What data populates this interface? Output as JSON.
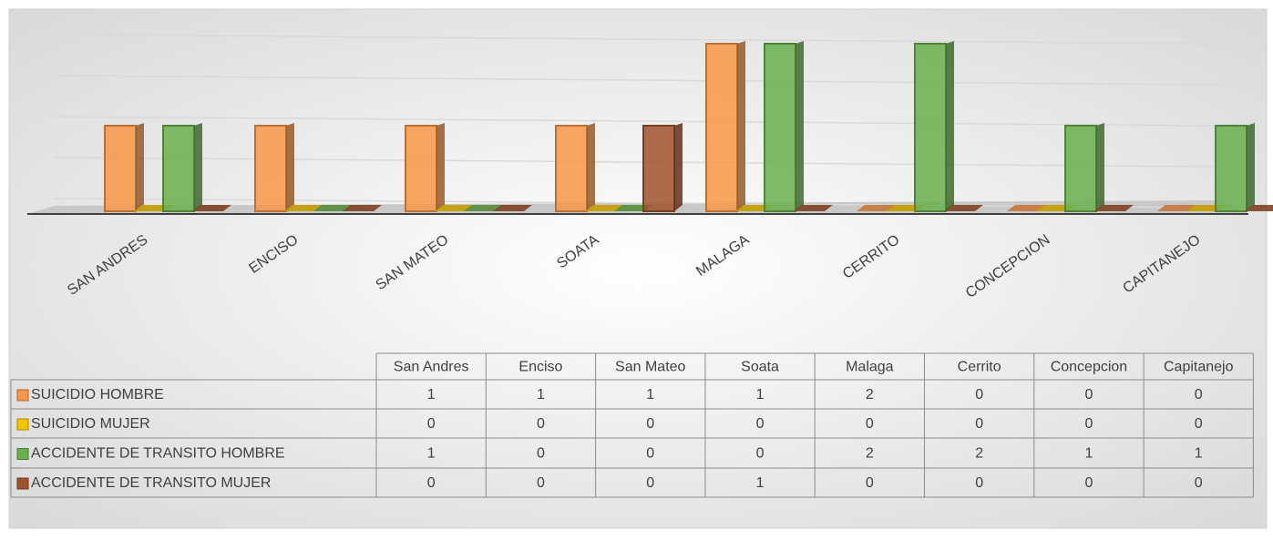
{
  "chart_data": {
    "type": "bar3d",
    "categories": [
      "SAN ANDRES",
      "ENCISO",
      "SAN MATEO",
      "SOATA",
      "MALAGA",
      "CERRITO",
      "CONCEPCION",
      "CAPITANEJO"
    ],
    "table_columns": [
      "San Andres",
      "Enciso",
      "San Mateo",
      "Soata",
      "Malaga",
      "Cerrito",
      "Concepcion",
      "Capitanejo"
    ],
    "series": [
      {
        "name": "SUICIDIO HOMBRE",
        "color": "#f79646",
        "values": [
          1,
          1,
          1,
          1,
          2,
          0,
          0,
          0
        ]
      },
      {
        "name": "SUICIDIO MUJER",
        "color": "#f5c400",
        "values": [
          0,
          0,
          0,
          0,
          0,
          0,
          0,
          0
        ]
      },
      {
        "name": "ACCIDENTE DE TRANSITO HOMBRE",
        "color": "#6ab04c",
        "values": [
          1,
          0,
          0,
          0,
          2,
          2,
          1,
          1
        ]
      },
      {
        "name": "ACCIDENTE DE TRANSITO MUJER",
        "color": "#a0522d",
        "values": [
          0,
          0,
          0,
          1,
          0,
          0,
          0,
          0
        ]
      }
    ],
    "ylim": [
      0,
      2
    ],
    "yticks": [
      0,
      0.5,
      1,
      1.5,
      2
    ],
    "grid": true
  }
}
